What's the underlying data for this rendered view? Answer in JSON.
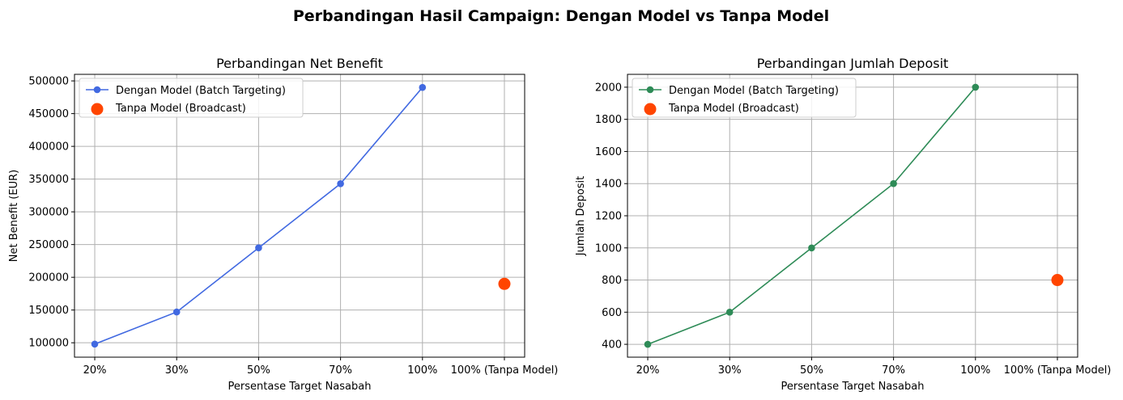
{
  "figure": {
    "suptitle": "Perbandingan Hasil Campaign: Dengan Model vs Tanpa Model"
  },
  "chart_data": [
    {
      "type": "line",
      "title": "Perbandingan Net Benefit",
      "xlabel": "Persentase Target Nasabah",
      "ylabel": "Net Benefit (EUR)",
      "categories": [
        "20%",
        "30%",
        "50%",
        "70%",
        "100%",
        "100% (Tanpa Model)"
      ],
      "ylim": [
        78000,
        510000
      ],
      "yticks": [
        100000,
        150000,
        200000,
        250000,
        300000,
        350000,
        400000,
        450000,
        500000
      ],
      "ytick_labels": [
        "100000",
        "150000",
        "200000",
        "250000",
        "300000",
        "350000",
        "400000",
        "450000",
        "500000"
      ],
      "grid": true,
      "legend_position": "top-left",
      "series": [
        {
          "name": "Dengan Model (Batch Targeting)",
          "kind": "line",
          "color": "#4169e1",
          "x": [
            "20%",
            "30%",
            "50%",
            "70%",
            "100%"
          ],
          "values": [
            98000,
            147000,
            245000,
            343000,
            490000
          ]
        },
        {
          "name": "Tanpa Model (Broadcast)",
          "kind": "scatter",
          "color": "#ff4500",
          "x": [
            "100% (Tanpa Model)"
          ],
          "values": [
            190000
          ]
        }
      ]
    },
    {
      "type": "line",
      "title": "Perbandingan Jumlah Deposit",
      "xlabel": "Persentase Target Nasabah",
      "ylabel": "Jumlah Deposit",
      "categories": [
        "20%",
        "30%",
        "50%",
        "70%",
        "100%",
        "100% (Tanpa Model)"
      ],
      "ylim": [
        320,
        2080
      ],
      "yticks": [
        400,
        600,
        800,
        1000,
        1200,
        1400,
        1600,
        1800,
        2000
      ],
      "ytick_labels": [
        "400",
        "600",
        "800",
        "1000",
        "1200",
        "1400",
        "1600",
        "1800",
        "2000"
      ],
      "grid": true,
      "legend_position": "top-left",
      "series": [
        {
          "name": "Dengan Model (Batch Targeting)",
          "kind": "line",
          "color": "#2e8b57",
          "x": [
            "20%",
            "30%",
            "50%",
            "70%",
            "100%"
          ],
          "values": [
            400,
            600,
            1000,
            1400,
            2000
          ]
        },
        {
          "name": "Tanpa Model (Broadcast)",
          "kind": "scatter",
          "color": "#ff4500",
          "x": [
            "100% (Tanpa Model)"
          ],
          "values": [
            800
          ]
        }
      ]
    }
  ]
}
